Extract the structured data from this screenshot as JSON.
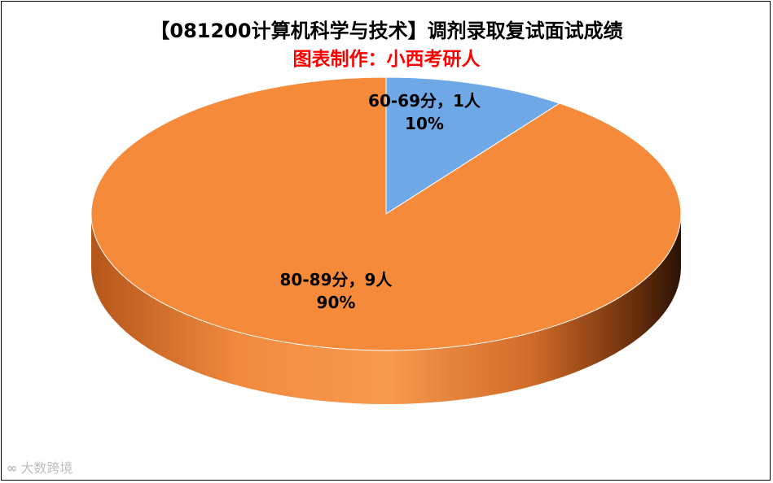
{
  "title": "【081200计算机科学与技术】调剂录取复试面试成绩",
  "subtitle": "图表制作：小西考研人",
  "watermark": "大数跨境",
  "chart_data": {
    "type": "pie",
    "title": "【081200计算机科学与技术】调剂录取复试面试成绩",
    "subtitle": "图表制作：小西考研人",
    "slices": [
      {
        "label": "60-69分",
        "value": 1,
        "unit": "人",
        "percent": 10,
        "text": "60-69分，1人",
        "pct_text": "10%",
        "color": "#6fa8e6"
      },
      {
        "label": "80-89分",
        "value": 9,
        "unit": "人",
        "percent": 90,
        "text": "80-89分，9人",
        "pct_text": "90%",
        "color": "#f58a3a"
      }
    ],
    "style": "3d"
  },
  "colors": {
    "title": "#000000",
    "subtitle": "#ff0000",
    "slice_blue": "#6fa8e6",
    "slice_orange": "#f58a3a",
    "side_dark": "#2a1204"
  }
}
